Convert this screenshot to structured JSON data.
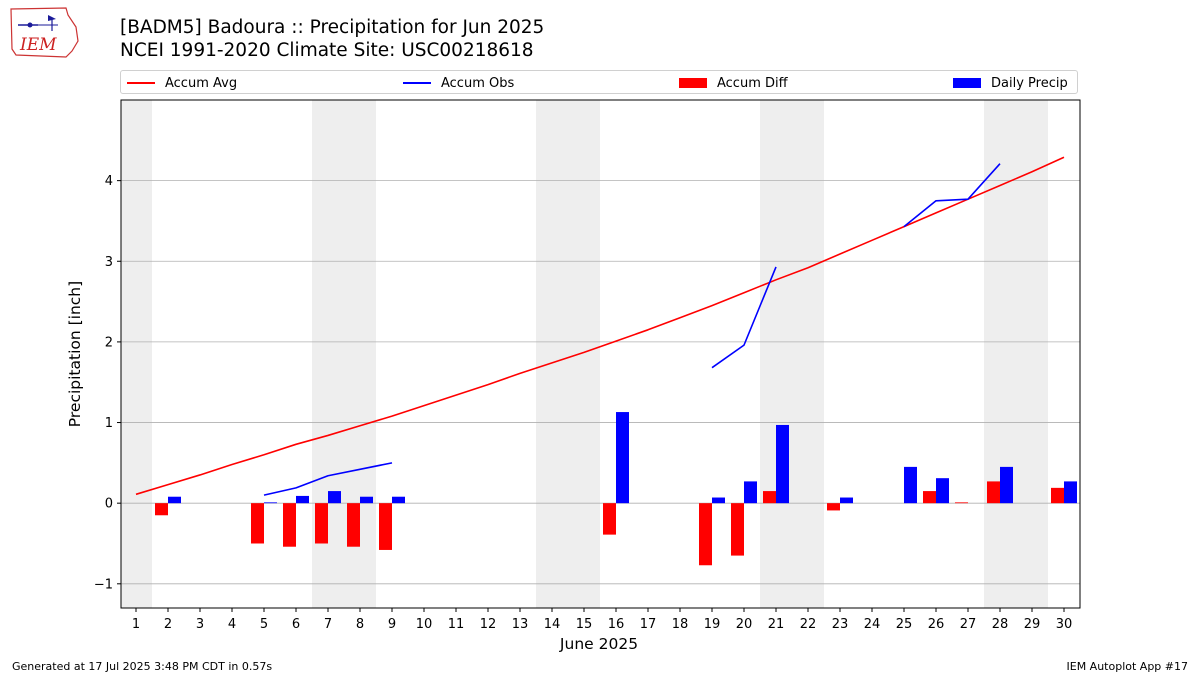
{
  "title_line1": "[BADM5] Badoura :: Precipitation for Jun 2025",
  "title_line2": "NCEI 1991-2020 Climate Site: USC00218618",
  "logo_text": "IEM",
  "footer_left": "Generated at 17 Jul 2025 3:48 PM CDT in 0.57s",
  "footer_right": "IEM Autoplot App #17",
  "colors": {
    "avg": "#ff0000",
    "obs": "#0000ff",
    "diff": "#ff0000",
    "daily": "#0000ff",
    "weekend": "#eeeeee",
    "grid": "#b0b0b0"
  },
  "legend": [
    {
      "label": "Accum Avg",
      "kind": "line",
      "color": "#ff0000"
    },
    {
      "label": "Accum Obs",
      "kind": "line",
      "color": "#0000ff"
    },
    {
      "label": "Accum Diff",
      "kind": "box",
      "color": "#ff0000"
    },
    {
      "label": "Daily Precip",
      "kind": "box",
      "color": "#0000ff"
    }
  ],
  "chart_data": {
    "type": "bar",
    "xlabel": "June 2025",
    "ylabel": "Precipitation [inch]",
    "ylim": [
      -1.3,
      5.0
    ],
    "yticks": [
      -1,
      0,
      1,
      2,
      3,
      4
    ],
    "ytick_labels": [
      "−1",
      "0",
      "1",
      "2",
      "3",
      "4"
    ],
    "grid": "horizontal",
    "legend_position": "top",
    "weekend_days": [
      1,
      7,
      8,
      14,
      15,
      21,
      22,
      28,
      29
    ],
    "x": [
      1,
      2,
      3,
      4,
      5,
      6,
      7,
      8,
      9,
      10,
      11,
      12,
      13,
      14,
      15,
      16,
      17,
      18,
      19,
      20,
      21,
      22,
      23,
      24,
      25,
      26,
      27,
      28,
      29,
      30
    ],
    "series": [
      {
        "name": "Accum Avg",
        "kind": "line",
        "values": [
          0.11,
          0.23,
          0.35,
          0.48,
          0.6,
          0.73,
          0.84,
          0.96,
          1.08,
          1.21,
          1.34,
          1.47,
          1.61,
          1.74,
          1.87,
          2.01,
          2.15,
          2.3,
          2.45,
          2.61,
          2.77,
          2.92,
          3.09,
          3.26,
          3.43,
          3.6,
          3.77,
          3.94,
          4.11,
          4.29
        ]
      },
      {
        "name": "Accum Obs",
        "kind": "line",
        "values": [
          null,
          null,
          null,
          null,
          0.1,
          0.19,
          0.34,
          0.42,
          0.5,
          null,
          null,
          null,
          null,
          null,
          null,
          null,
          null,
          null,
          1.68,
          1.96,
          2.93,
          null,
          null,
          null,
          3.43,
          3.75,
          3.77,
          4.21,
          null,
          null
        ]
      },
      {
        "name": "Accum Diff",
        "kind": "bar",
        "values": [
          null,
          -0.15,
          null,
          null,
          -0.5,
          -0.54,
          -0.5,
          -0.54,
          -0.58,
          null,
          null,
          null,
          null,
          null,
          null,
          -0.39,
          null,
          null,
          -0.77,
          -0.65,
          0.15,
          null,
          -0.09,
          null,
          null,
          0.15,
          0.01,
          0.27,
          null,
          0.19
        ]
      },
      {
        "name": "Daily Precip",
        "kind": "bar",
        "values": [
          null,
          0.08,
          null,
          null,
          0.01,
          0.09,
          0.15,
          0.08,
          0.08,
          null,
          null,
          null,
          null,
          null,
          null,
          1.13,
          null,
          null,
          0.07,
          0.27,
          0.97,
          null,
          0.07,
          null,
          0.45,
          0.31,
          null,
          0.45,
          null,
          0.27
        ]
      }
    ]
  }
}
